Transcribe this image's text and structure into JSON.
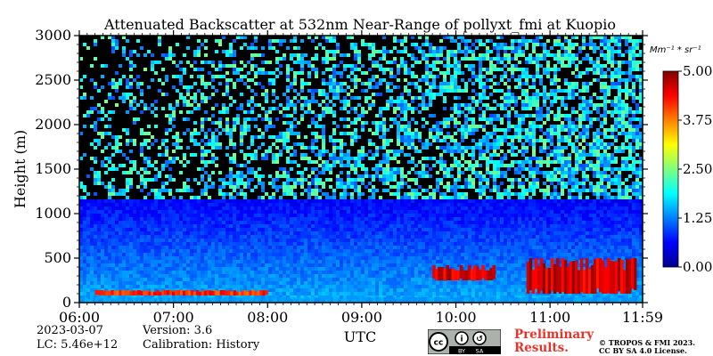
{
  "chart_data": {
    "type": "heatmap",
    "title": "Attenuated Backscatter at 532nm Near-Range of pollyxt_fmi at Kuopio",
    "xlabel": "UTC",
    "ylabel": "Height (m)",
    "x_ticks": [
      "06:00",
      "07:00",
      "08:00",
      "09:00",
      "10:00",
      "11:00",
      "11:59"
    ],
    "xlim": [
      "06:00",
      "11:59"
    ],
    "y_ticks": [
      0,
      500,
      1000,
      1500,
      2000,
      2500,
      3000
    ],
    "ylim": [
      0,
      3000
    ],
    "colorbar": {
      "unit_label": "Mm⁻¹ * sr⁻¹",
      "ticks": [
        "0.00",
        "1.25",
        "2.50",
        "3.75",
        "5.00"
      ],
      "range": [
        0,
        5
      ],
      "colormap": "jet"
    },
    "features": [
      {
        "name": "surface layer",
        "time_start": "06:00",
        "time_end": "11:59",
        "height_start": 0,
        "height_end": 60,
        "value": 1.5
      },
      {
        "name": "low aerosol layer",
        "time_start": "06:10",
        "time_end": "08:00",
        "height_start": 80,
        "height_end": 140,
        "value": 4.5
      },
      {
        "name": "boundary layer clouds",
        "time_start": "09:45",
        "time_end": "10:25",
        "height_start": 250,
        "height_end": 420,
        "value": 5.0
      },
      {
        "name": "boundary layer clouds",
        "time_start": "10:45",
        "time_end": "11:55",
        "height_start": 100,
        "height_end": 500,
        "value": 5.0
      }
    ]
  },
  "footer": {
    "date": "2023-03-07",
    "lc": "LC: 5.46e+12",
    "version": "Version: 3.6",
    "calibration": "Calibration: History",
    "license_badge": [
      "cc",
      "i",
      "↺",
      "BY",
      "SA"
    ],
    "preliminary_line1": "Preliminary",
    "preliminary_line2": "Results.",
    "copyright_line1": "© TROPOS & FMI 2023.",
    "copyright_line2": "CC BY SA 4.0 License."
  }
}
